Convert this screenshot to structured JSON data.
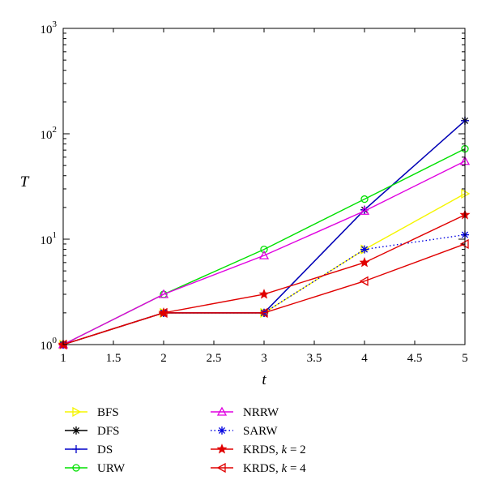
{
  "chart_data": {
    "type": "line",
    "title": "",
    "xlabel": "t",
    "ylabel": "T",
    "xscale": "linear",
    "yscale": "log",
    "xlim": [
      1,
      5
    ],
    "ylim": [
      1,
      1000
    ],
    "xticks": [
      "1",
      "1.5",
      "2",
      "2.5",
      "3",
      "3.5",
      "4",
      "4.5",
      "5"
    ],
    "yticks": [
      {
        "base": "10",
        "exp": "0"
      },
      {
        "base": "10",
        "exp": "1"
      },
      {
        "base": "10",
        "exp": "2"
      },
      {
        "base": "10",
        "exp": "3"
      }
    ],
    "legend_position": "below",
    "series": [
      {
        "name": "BFS",
        "label": "BFS",
        "color": "#f5f500",
        "marker": "triangle-right",
        "dash": "solid",
        "x": [
          1,
          2,
          3,
          4,
          5
        ],
        "y": [
          1,
          2,
          2,
          8,
          27
        ]
      },
      {
        "name": "DFS",
        "label": "DFS",
        "color": "#000000",
        "marker": "asterisk",
        "dash": "solid",
        "x": [
          1,
          2,
          3,
          4,
          5
        ],
        "y": [
          1,
          2,
          2,
          19,
          133
        ]
      },
      {
        "name": "DS",
        "label": "DS",
        "color": "#0000c8",
        "marker": "plus",
        "dash": "solid",
        "x": [
          1,
          2,
          3,
          4,
          5
        ],
        "y": [
          1,
          2,
          2,
          19,
          133
        ]
      },
      {
        "name": "URW",
        "label": "URW",
        "color": "#00e000",
        "marker": "circle",
        "dash": "solid",
        "x": [
          1,
          2,
          3,
          4,
          5
        ],
        "y": [
          1,
          3,
          8,
          24,
          72
        ]
      },
      {
        "name": "NRRW",
        "label": "NRRW",
        "color": "#e000e0",
        "marker": "triangle-up",
        "dash": "solid",
        "x": [
          1,
          2,
          3,
          4,
          5
        ],
        "y": [
          1,
          3,
          7,
          18.5,
          55
        ]
      },
      {
        "name": "SARW",
        "label": "SARW",
        "color": "#0000e0",
        "marker": "asterisk",
        "dash": "dotted",
        "x": [
          1,
          2,
          3,
          4,
          5
        ],
        "y": [
          1,
          2,
          2,
          8,
          11
        ]
      },
      {
        "name": "KRDS, k = 2",
        "label_pre": "KRDS, ",
        "label_k": "k",
        "label_post": " = 2",
        "color": "#e00000",
        "marker": "star",
        "dash": "solid",
        "x": [
          1,
          2,
          3,
          4,
          5
        ],
        "y": [
          1,
          2,
          3,
          6,
          17
        ]
      },
      {
        "name": "KRDS, k = 4",
        "label_pre": "KRDS, ",
        "label_k": "k",
        "label_post": " = 4",
        "color": "#e00000",
        "marker": "triangle-left",
        "dash": "solid",
        "x": [
          1,
          2,
          3,
          4,
          5
        ],
        "y": [
          1,
          2,
          2,
          4,
          9
        ]
      }
    ]
  }
}
